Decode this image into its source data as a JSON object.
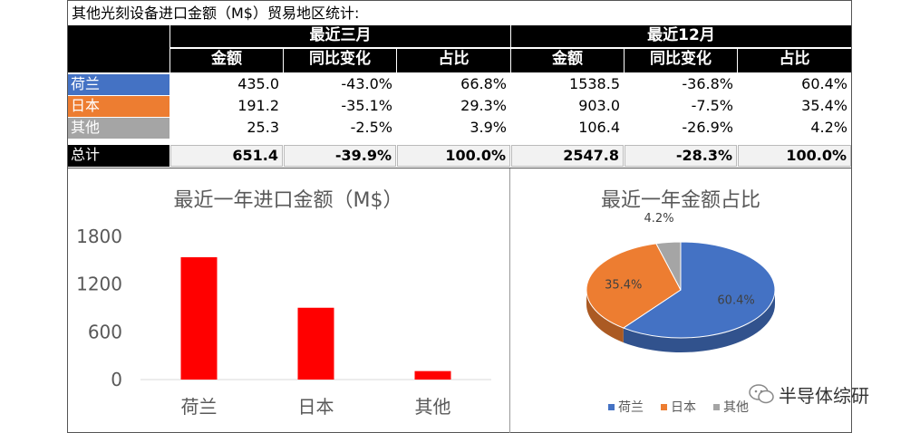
{
  "table": {
    "title": "其他光刻设备进口金额（M$）贸易地区统计:",
    "group_headers": [
      "最近三月",
      "最近12月"
    ],
    "column_headers": [
      "金额",
      "同比变化",
      "占比",
      "金额",
      "同比变化",
      "占比"
    ],
    "rows": [
      {
        "label": "荷兰",
        "color": "#4472C4",
        "values": [
          "435.0",
          "-43.0%",
          "66.8%",
          "1538.5",
          "-36.8%",
          "60.4%"
        ]
      },
      {
        "label": "日本",
        "color": "#ED7D31",
        "values": [
          "191.2",
          "-35.1%",
          "29.3%",
          "903.0",
          "-7.5%",
          "35.4%"
        ]
      },
      {
        "label": "其他",
        "color": "#A5A5A5",
        "values": [
          "25.3",
          "-2.5%",
          "3.9%",
          "106.4",
          "-26.9%",
          "4.2%"
        ]
      }
    ],
    "total": {
      "label": "总计",
      "values": [
        "651.4",
        "-39.9%",
        "100.0%",
        "2547.8",
        "-28.3%",
        "100.0%"
      ]
    }
  },
  "chart_data": [
    {
      "type": "bar",
      "title": "最近一年进口金额（M$）",
      "categories": [
        "荷兰",
        "日本",
        "其他"
      ],
      "values": [
        1538.5,
        903.0,
        106.4
      ],
      "yticks": [
        "0",
        "600",
        "1200",
        "1800"
      ],
      "ylim": [
        0,
        1800
      ],
      "color": "#FF0000"
    },
    {
      "type": "pie",
      "title": "最近一年金额占比",
      "labels": [
        "荷兰",
        "日本",
        "其他"
      ],
      "values": [
        60.4,
        35.4,
        4.2
      ],
      "data_labels": [
        "60.4%",
        "35.4%",
        "4.2%"
      ],
      "colors": [
        "#4472C4",
        "#ED7D31",
        "#A5A5A5"
      ],
      "legend_position": "bottom"
    }
  ],
  "watermark": "半导体综研"
}
